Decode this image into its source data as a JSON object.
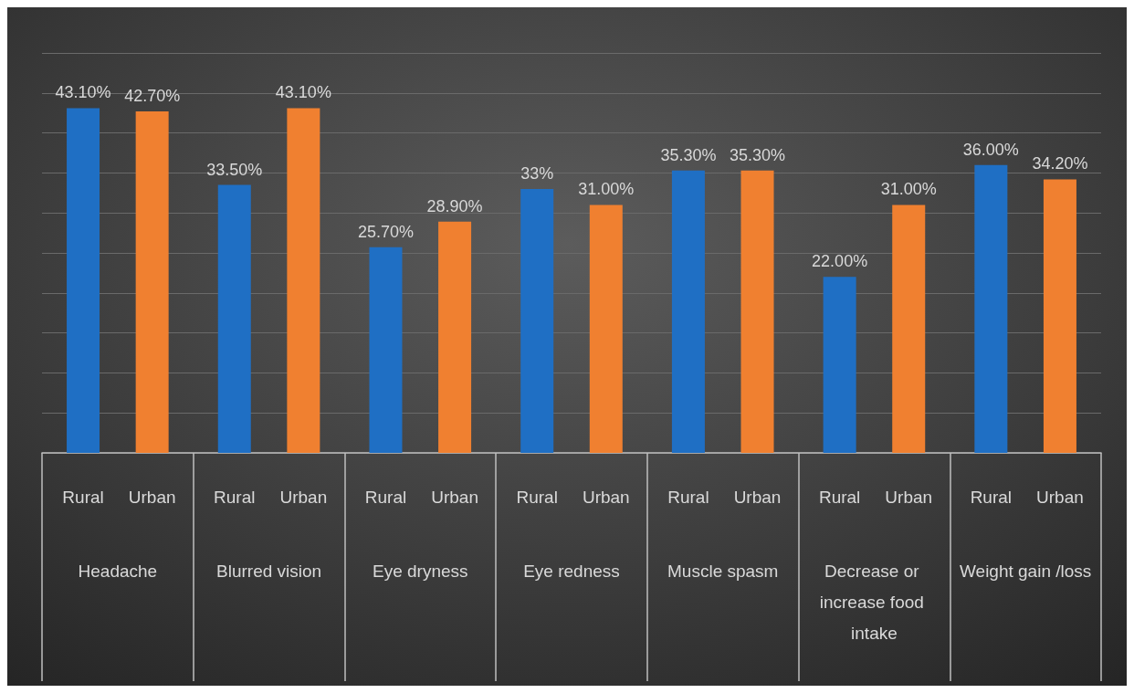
{
  "chart_data": {
    "type": "bar",
    "categories": [
      "Headache",
      "Blurred vision",
      "Eye dryness",
      "Eye redness",
      "Muscle spasm",
      "Decrease or increase food intake",
      "Weight gain /loss"
    ],
    "series": [
      {
        "name": "Rural",
        "color": "#1f6fc4",
        "values": [
          43.1,
          33.5,
          25.7,
          33,
          35.3,
          22,
          36
        ],
        "value_labels": [
          "43.10%",
          "33.50%",
          "25.70%",
          "33%",
          "35.30%",
          "22.00%",
          "36.00%"
        ]
      },
      {
        "name": "Urban",
        "color": "#f08030",
        "values": [
          42.7,
          43.1,
          28.9,
          31,
          35.3,
          31,
          34.2
        ],
        "value_labels": [
          "42.70%",
          "43.10%",
          "28.90%",
          "31.00%",
          "35.30%",
          "31.00%",
          "34.20%"
        ]
      }
    ],
    "ylim": [
      0,
      50
    ],
    "yticks": [
      {
        "value": 0,
        "label": null
      },
      {
        "value": 5,
        "label": null
      },
      {
        "value": 10,
        "label": null
      },
      {
        "value": 15,
        "label": null
      },
      {
        "value": 20,
        "label": null
      },
      {
        "value": 25,
        "label": null
      },
      {
        "value": 30,
        "label": null
      },
      {
        "value": 35,
        "label": null
      },
      {
        "value": 40,
        "label": null
      },
      {
        "value": 45,
        "label": null
      },
      {
        "value": 50,
        "label": null
      }
    ],
    "grid": "y",
    "tick_labels": "x",
    "legend": false
  }
}
